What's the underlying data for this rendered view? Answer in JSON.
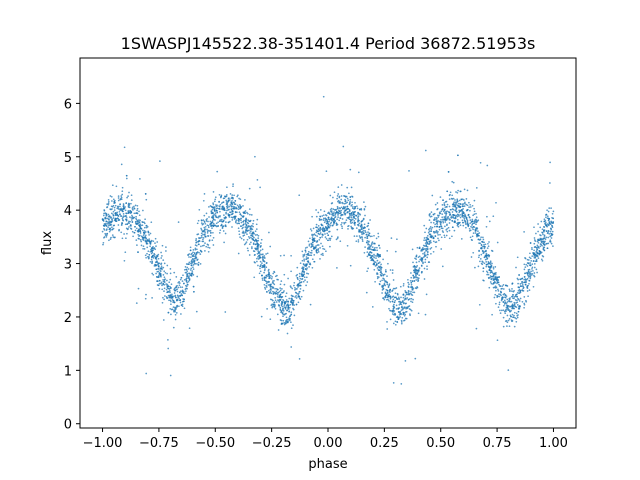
{
  "chart_data": {
    "type": "scatter",
    "title": "1SWASPJ145522.38-351401.4 Period 36872.51953s",
    "xlabel": "phase",
    "ylabel": "flux",
    "xlim": [
      -1.1,
      1.1
    ],
    "ylim": [
      -0.08,
      6.85
    ],
    "x_ticks": [
      -1.0,
      -0.75,
      -0.5,
      -0.25,
      0.0,
      0.25,
      0.5,
      0.75,
      1.0
    ],
    "x_tick_labels": [
      "−1.00",
      "−0.75",
      "−0.50",
      "−0.25",
      "0.00",
      "0.25",
      "0.50",
      "0.75",
      "1.00"
    ],
    "y_ticks": [
      0,
      1,
      2,
      3,
      4,
      5,
      6
    ],
    "y_tick_labels": [
      "0",
      "1",
      "2",
      "3",
      "4",
      "5",
      "6"
    ],
    "grid": false,
    "marker_color": "#1f77b4",
    "description_of_series": "phase-folded light curve, dense band of points",
    "series": [
      {
        "x": [
          -1.0,
          -0.95,
          -0.9,
          -0.85,
          -0.8,
          -0.75,
          -0.7,
          -0.68,
          -0.65,
          -0.6,
          -0.55,
          -0.5,
          -0.45,
          -0.42,
          -0.4,
          -0.35,
          -0.3,
          -0.25,
          -0.2,
          -0.17,
          -0.15,
          -0.1,
          -0.05,
          0.0,
          0.05,
          0.08,
          0.1,
          0.15,
          0.2,
          0.25,
          0.3,
          0.33,
          0.35,
          0.4,
          0.45,
          0.5,
          0.55,
          0.58,
          0.6,
          0.65,
          0.7,
          0.75,
          0.8,
          0.83,
          0.85,
          0.9,
          0.95,
          1.0
        ],
        "y": [
          3.7,
          3.9,
          3.95,
          3.75,
          3.4,
          2.9,
          2.4,
          2.3,
          2.45,
          3.05,
          3.6,
          3.9,
          4.0,
          4.0,
          3.95,
          3.65,
          3.1,
          2.55,
          2.2,
          2.15,
          2.3,
          2.95,
          3.5,
          3.8,
          3.95,
          4.0,
          3.95,
          3.7,
          3.2,
          2.6,
          2.2,
          2.15,
          2.3,
          2.9,
          3.5,
          3.85,
          3.98,
          4.02,
          3.98,
          3.7,
          3.1,
          2.55,
          2.25,
          2.2,
          2.35,
          2.95,
          3.45,
          3.75
        ]
      }
    ]
  }
}
